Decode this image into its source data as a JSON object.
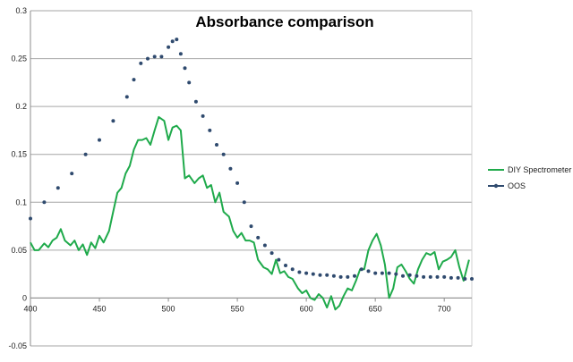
{
  "chart_data": {
    "type": "line",
    "title": "Absorbance comparison",
    "xlabel": "",
    "ylabel": "",
    "xlim": [
      400,
      720
    ],
    "ylim": [
      -0.05,
      0.3
    ],
    "x_ticks": [
      400,
      450,
      500,
      550,
      600,
      650,
      700
    ],
    "y_ticks": [
      -0.05,
      0,
      0.05,
      0.1,
      0.15,
      0.2,
      0.25,
      0.3
    ],
    "x_tick_labels": [
      "400",
      "450",
      "500",
      "550",
      "600",
      "650",
      "700"
    ],
    "y_tick_labels": [
      "-0.05",
      "0",
      "0.05",
      "0.1",
      "0.15",
      "0.2",
      "0.25",
      "0.3"
    ],
    "grid": "horizontal",
    "legend_position": "right",
    "series": [
      {
        "name": "DIY Spectrometer",
        "style": "line",
        "color": "#1faa4b",
        "x": [
          400,
          403,
          406,
          410,
          413,
          416,
          419,
          422,
          425,
          429,
          432,
          435,
          438,
          441,
          444,
          447,
          450,
          453,
          457,
          460,
          463,
          466,
          469,
          472,
          475,
          478,
          481,
          484,
          487,
          490,
          493,
          497,
          500,
          503,
          506,
          509,
          512,
          515,
          519,
          522,
          525,
          528,
          531,
          534,
          537,
          540,
          544,
          547,
          550,
          553,
          556,
          559,
          562,
          565,
          569,
          572,
          575,
          578,
          581,
          584,
          587,
          590,
          594,
          597,
          600,
          603,
          606,
          609,
          612,
          615,
          618,
          621,
          624,
          627,
          630,
          633,
          636,
          639,
          642,
          645,
          648,
          651,
          654,
          657,
          660,
          663,
          666,
          669,
          672,
          675,
          678,
          681,
          684,
          687,
          690,
          693,
          696,
          699,
          702,
          705,
          708,
          711,
          714,
          718
        ],
        "y": [
          0.058,
          0.05,
          0.05,
          0.057,
          0.053,
          0.06,
          0.063,
          0.072,
          0.06,
          0.055,
          0.06,
          0.05,
          0.056,
          0.045,
          0.058,
          0.052,
          0.065,
          0.058,
          0.07,
          0.09,
          0.11,
          0.115,
          0.13,
          0.138,
          0.155,
          0.165,
          0.165,
          0.167,
          0.16,
          0.175,
          0.189,
          0.185,
          0.165,
          0.178,
          0.18,
          0.175,
          0.125,
          0.128,
          0.12,
          0.125,
          0.128,
          0.115,
          0.118,
          0.1,
          0.11,
          0.09,
          0.085,
          0.07,
          0.063,
          0.068,
          0.06,
          0.06,
          0.058,
          0.04,
          0.032,
          0.03,
          0.025,
          0.04,
          0.026,
          0.028,
          0.022,
          0.02,
          0.01,
          0.005,
          0.008,
          0.0,
          -0.002,
          0.004,
          0.0,
          -0.01,
          0.002,
          -0.012,
          -0.008,
          0.002,
          0.01,
          0.008,
          0.018,
          0.03,
          0.03,
          0.05,
          0.06,
          0.067,
          0.055,
          0.035,
          0.0,
          0.01,
          0.032,
          0.035,
          0.028,
          0.02,
          0.015,
          0.03,
          0.04,
          0.047,
          0.045,
          0.048,
          0.03,
          0.038,
          0.04,
          0.043,
          0.05,
          0.032,
          0.018,
          0.04
        ]
      },
      {
        "name": "OOS",
        "style": "markers",
        "color": "#2f4a6e",
        "x": [
          400,
          410,
          420,
          430,
          440,
          450,
          460,
          470,
          475,
          480,
          485,
          490,
          495,
          500,
          503,
          506,
          509,
          512,
          515,
          520,
          525,
          530,
          535,
          540,
          545,
          550,
          555,
          560,
          565,
          570,
          575,
          580,
          585,
          590,
          595,
          600,
          605,
          610,
          615,
          620,
          625,
          630,
          635,
          640,
          645,
          650,
          655,
          660,
          665,
          670,
          675,
          680,
          685,
          690,
          695,
          700,
          705,
          710,
          715,
          720
        ],
        "y": [
          0.083,
          0.1,
          0.115,
          0.13,
          0.15,
          0.165,
          0.185,
          0.21,
          0.228,
          0.245,
          0.25,
          0.252,
          0.252,
          0.262,
          0.268,
          0.27,
          0.255,
          0.24,
          0.225,
          0.205,
          0.19,
          0.175,
          0.16,
          0.15,
          0.135,
          0.12,
          0.1,
          0.075,
          0.063,
          0.055,
          0.047,
          0.04,
          0.034,
          0.03,
          0.027,
          0.026,
          0.025,
          0.024,
          0.024,
          0.023,
          0.022,
          0.022,
          0.023,
          0.03,
          0.028,
          0.026,
          0.026,
          0.026,
          0.025,
          0.023,
          0.024,
          0.023,
          0.022,
          0.022,
          0.022,
          0.022,
          0.021,
          0.021,
          0.02,
          0.02
        ]
      }
    ]
  }
}
